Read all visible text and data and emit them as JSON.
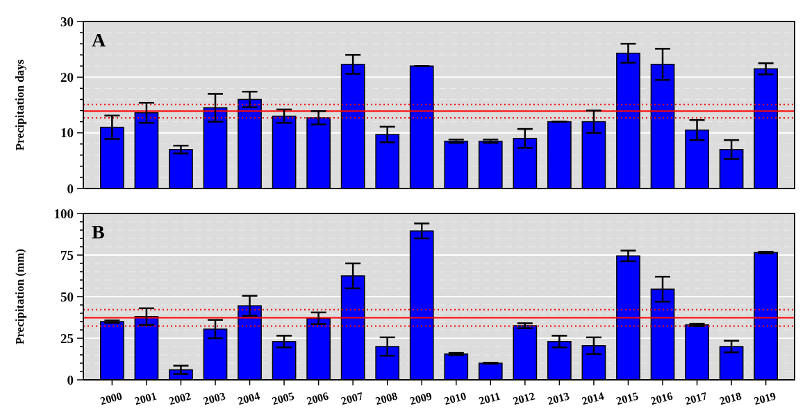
{
  "chart_data": [
    {
      "type": "bar",
      "ylabel": "Precipitation days",
      "annotations": [
        "A"
      ],
      "tick_labels": "y",
      "grid": "y",
      "categories": [
        "2000",
        "2001",
        "2002",
        "2003",
        "2004",
        "2005",
        "2006",
        "2007",
        "2008",
        "2009",
        "2010",
        "2011",
        "2012",
        "2013",
        "2014",
        "2015",
        "2016",
        "2017",
        "2018",
        "2019"
      ],
      "series": [
        {
          "color": "#0000ff",
          "values": [
            11.0,
            13.6,
            7.0,
            14.5,
            16.0,
            13.0,
            12.7,
            22.3,
            9.7,
            22.0,
            8.5,
            8.5,
            9.0,
            12.0,
            12.0,
            24.3,
            22.3,
            10.5,
            7.0,
            21.5
          ],
          "errors": [
            2.1,
            1.8,
            0.7,
            2.5,
            1.4,
            1.2,
            1.2,
            1.7,
            1.4,
            0,
            0.3,
            0.3,
            1.7,
            0,
            2.0,
            1.7,
            2.8,
            1.8,
            1.7,
            1.0
          ]
        }
      ],
      "ylim": [
        0,
        30
      ],
      "yticks": [
        0,
        {
          "value": 2,
          "label": null
        },
        {
          "value": 4,
          "label": null
        },
        {
          "value": 6,
          "label": null
        },
        {
          "value": 8,
          "label": null
        },
        10,
        {
          "value": 12,
          "label": null
        },
        {
          "value": 14,
          "label": null
        },
        {
          "value": 16,
          "label": null
        },
        {
          "value": 18,
          "label": null
        },
        20,
        {
          "value": 22,
          "label": null
        },
        {
          "value": 24,
          "label": null
        },
        {
          "value": 26,
          "label": null
        },
        {
          "value": 28,
          "label": null
        },
        30
      ],
      "ref_lines": [
        {
          "axis": "y",
          "value": 13.9,
          "color": "#ff0000",
          "line_style": "solid"
        },
        {
          "axis": "y",
          "value": 15.1,
          "color": "#ff0000",
          "line_style": "dotted"
        },
        {
          "axis": "y",
          "value": 12.7,
          "color": "#ff0000",
          "line_style": "dotted"
        }
      ]
    },
    {
      "type": "bar",
      "ylabel": "Precipitation (mm)",
      "annotations": [
        "B"
      ],
      "grid": "y",
      "categories": [
        "2000",
        "2001",
        "2002",
        "2003",
        "2004",
        "2005",
        "2006",
        "2007",
        "2008",
        "2009",
        "2010",
        "2011",
        "2012",
        "2013",
        "2014",
        "2015",
        "2016",
        "2017",
        "2018",
        "2019"
      ],
      "series": [
        {
          "color": "#0000ff",
          "values": [
            35,
            38,
            6,
            30.5,
            44.5,
            23,
            37,
            62.5,
            20,
            89.5,
            15.5,
            10,
            32.5,
            23,
            20.5,
            74.5,
            54.5,
            33,
            20,
            76.5
          ],
          "errors": [
            0.7,
            5,
            2.5,
            5.5,
            6,
            3.5,
            3.5,
            7.5,
            5.5,
            4.5,
            0.7,
            0.3,
            1.5,
            3.5,
            5,
            3.2,
            7.5,
            0.7,
            3.5,
            0.5
          ]
        }
      ],
      "ylim": [
        0,
        100
      ],
      "yticks": [
        0,
        {
          "value": 5,
          "label": null
        },
        {
          "value": 10,
          "label": null
        },
        {
          "value": 15,
          "label": null
        },
        {
          "value": 20,
          "label": null
        },
        25,
        {
          "value": 30,
          "label": null
        },
        {
          "value": 35,
          "label": null
        },
        {
          "value": 40,
          "label": null
        },
        {
          "value": 45,
          "label": null
        },
        50,
        {
          "value": 55,
          "label": null
        },
        {
          "value": 60,
          "label": null
        },
        {
          "value": 65,
          "label": null
        },
        {
          "value": 70,
          "label": null
        },
        75,
        {
          "value": 80,
          "label": null
        },
        {
          "value": 85,
          "label": null
        },
        {
          "value": 90,
          "label": null
        },
        {
          "value": 95,
          "label": null
        },
        100
      ],
      "ref_lines": [
        {
          "axis": "y",
          "value": 37.3,
          "color": "#ff0000",
          "line_style": "solid"
        },
        {
          "axis": "y",
          "value": 42.2,
          "color": "#ff0000",
          "line_style": "dotted"
        },
        {
          "axis": "y",
          "value": 32.3,
          "color": "#ff0000",
          "line_style": "dotted"
        }
      ]
    }
  ]
}
